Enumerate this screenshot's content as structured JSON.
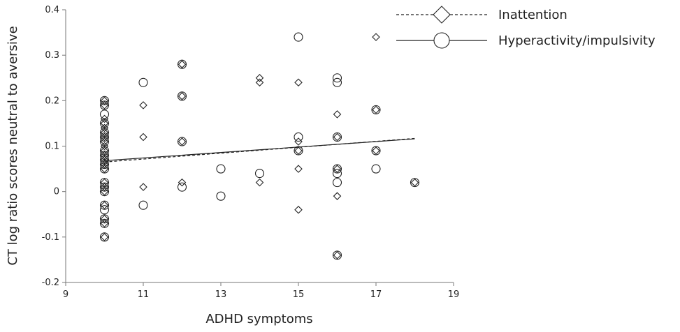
{
  "chart_data": {
    "type": "scatter",
    "title": "",
    "xlabel": "ADHD symptoms",
    "ylabel": "CT log ratio scores neutral to aversive",
    "xlim": [
      9,
      19
    ],
    "ylim": [
      -0.2,
      0.4
    ],
    "x_ticks": [
      9,
      11,
      13,
      15,
      17,
      19
    ],
    "y_ticks": [
      -0.2,
      -0.1,
      0,
      0.1,
      0.2,
      0.3,
      0.4
    ],
    "y_tick_labels": [
      "-0.2",
      "-0.1",
      "0",
      "0.1",
      "0.2",
      "0.3",
      "0.4"
    ],
    "grid": false,
    "legend_position": "top-right",
    "series": [
      {
        "name": "Inattention",
        "marker": "diamond",
        "line_style": "dashed",
        "points": [
          [
            10,
            0.2
          ],
          [
            10,
            0.19
          ],
          [
            10,
            0.16
          ],
          [
            10,
            0.15
          ],
          [
            10,
            0.14
          ],
          [
            10,
            0.13
          ],
          [
            10,
            0.12
          ],
          [
            10,
            0.11
          ],
          [
            10,
            0.1
          ],
          [
            10,
            0.09
          ],
          [
            10,
            0.08
          ],
          [
            10,
            0.07
          ],
          [
            10,
            0.06
          ],
          [
            10,
            0.05
          ],
          [
            10,
            0.02
          ],
          [
            10,
            0.01
          ],
          [
            10,
            0.0
          ],
          [
            10,
            -0.03
          ],
          [
            10,
            -0.06
          ],
          [
            10,
            -0.07
          ],
          [
            10,
            -0.1
          ],
          [
            11,
            0.19
          ],
          [
            11,
            0.12
          ],
          [
            11,
            0.01
          ],
          [
            12,
            0.28
          ],
          [
            12,
            0.21
          ],
          [
            12,
            0.11
          ],
          [
            12,
            0.02
          ],
          [
            14,
            0.25
          ],
          [
            14,
            0.24
          ],
          [
            14,
            0.02
          ],
          [
            15,
            0.24
          ],
          [
            15,
            0.11
          ],
          [
            15,
            0.09
          ],
          [
            15,
            0.05
          ],
          [
            15,
            -0.04
          ],
          [
            16,
            0.17
          ],
          [
            16,
            0.12
          ],
          [
            16,
            0.05
          ],
          [
            16,
            -0.01
          ],
          [
            16,
            -0.14
          ],
          [
            17,
            0.34
          ],
          [
            17,
            0.18
          ],
          [
            17,
            0.09
          ],
          [
            18,
            0.02
          ]
        ],
        "trend": {
          "x": [
            10,
            18
          ],
          "y": [
            0.065,
            0.117
          ]
        }
      },
      {
        "name": "Hyperactivity/impulsivity",
        "marker": "circle",
        "line_style": "solid",
        "points": [
          [
            10,
            0.2
          ],
          [
            10,
            0.19
          ],
          [
            10,
            0.17
          ],
          [
            10,
            0.15
          ],
          [
            10,
            0.13
          ],
          [
            10,
            0.12
          ],
          [
            10,
            0.11
          ],
          [
            10,
            0.09
          ],
          [
            10,
            0.08
          ],
          [
            10,
            0.07
          ],
          [
            10,
            0.06
          ],
          [
            10,
            0.05
          ],
          [
            10,
            0.02
          ],
          [
            10,
            0.01
          ],
          [
            10,
            0.0
          ],
          [
            10,
            -0.03
          ],
          [
            10,
            -0.04
          ],
          [
            10,
            -0.06
          ],
          [
            10,
            -0.07
          ],
          [
            10,
            -0.1
          ],
          [
            11,
            0.24
          ],
          [
            11,
            -0.03
          ],
          [
            12,
            0.28
          ],
          [
            12,
            0.21
          ],
          [
            12,
            0.11
          ],
          [
            12,
            0.01
          ],
          [
            13,
            0.05
          ],
          [
            13,
            -0.01
          ],
          [
            14,
            0.04
          ],
          [
            15,
            0.34
          ],
          [
            15,
            0.12
          ],
          [
            15,
            0.09
          ],
          [
            16,
            0.25
          ],
          [
            16,
            0.24
          ],
          [
            16,
            0.12
          ],
          [
            16,
            0.05
          ],
          [
            16,
            0.04
          ],
          [
            16,
            0.02
          ],
          [
            16,
            -0.14
          ],
          [
            17,
            0.18
          ],
          [
            17,
            0.09
          ],
          [
            17,
            0.05
          ],
          [
            18,
            0.02
          ]
        ],
        "trend": {
          "x": [
            10,
            18
          ],
          "y": [
            0.068,
            0.116
          ]
        }
      }
    ],
    "colors": {
      "marker_stroke": "#222222",
      "line": "#222222",
      "background": "#ffffff"
    }
  }
}
